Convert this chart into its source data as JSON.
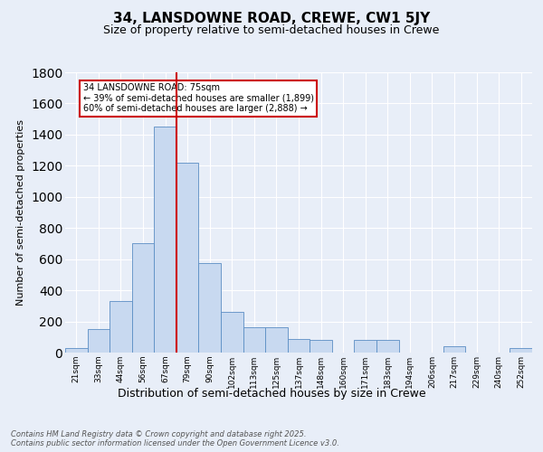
{
  "title": "34, LANSDOWNE ROAD, CREWE, CW1 5JY",
  "subtitle": "Size of property relative to semi-detached houses in Crewe",
  "xlabel": "Distribution of semi-detached houses by size in Crewe",
  "ylabel": "Number of semi-detached properties",
  "footnote": "Contains HM Land Registry data © Crown copyright and database right 2025.\nContains public sector information licensed under the Open Government Licence v3.0.",
  "categories": [
    "21sqm",
    "33sqm",
    "44sqm",
    "56sqm",
    "67sqm",
    "79sqm",
    "90sqm",
    "102sqm",
    "113sqm",
    "125sqm",
    "137sqm",
    "148sqm",
    "160sqm",
    "171sqm",
    "183sqm",
    "194sqm",
    "206sqm",
    "217sqm",
    "229sqm",
    "240sqm",
    "252sqm"
  ],
  "values": [
    30,
    150,
    330,
    700,
    1450,
    1220,
    575,
    260,
    160,
    160,
    85,
    80,
    0,
    80,
    80,
    0,
    0,
    40,
    0,
    0,
    30
  ],
  "bar_color": "#c8d9f0",
  "bar_edge_color": "#5b8ec4",
  "vline_pos": 4.5,
  "vline_color": "#cc0000",
  "annotation_text": "34 LANSDOWNE ROAD: 75sqm\n← 39% of semi-detached houses are smaller (1,899)\n60% of semi-detached houses are larger (2,888) →",
  "annotation_box_color": "#ffffff",
  "annotation_box_edge": "#cc0000",
  "ylim": [
    0,
    1800
  ],
  "yticks": [
    0,
    200,
    400,
    600,
    800,
    1000,
    1200,
    1400,
    1600,
    1800
  ],
  "bg_color": "#e8eef8",
  "grid_color": "#ffffff",
  "title_fontsize": 11,
  "subtitle_fontsize": 9,
  "footnote_fontsize": 6,
  "ylabel_fontsize": 8,
  "xlabel_fontsize": 9
}
